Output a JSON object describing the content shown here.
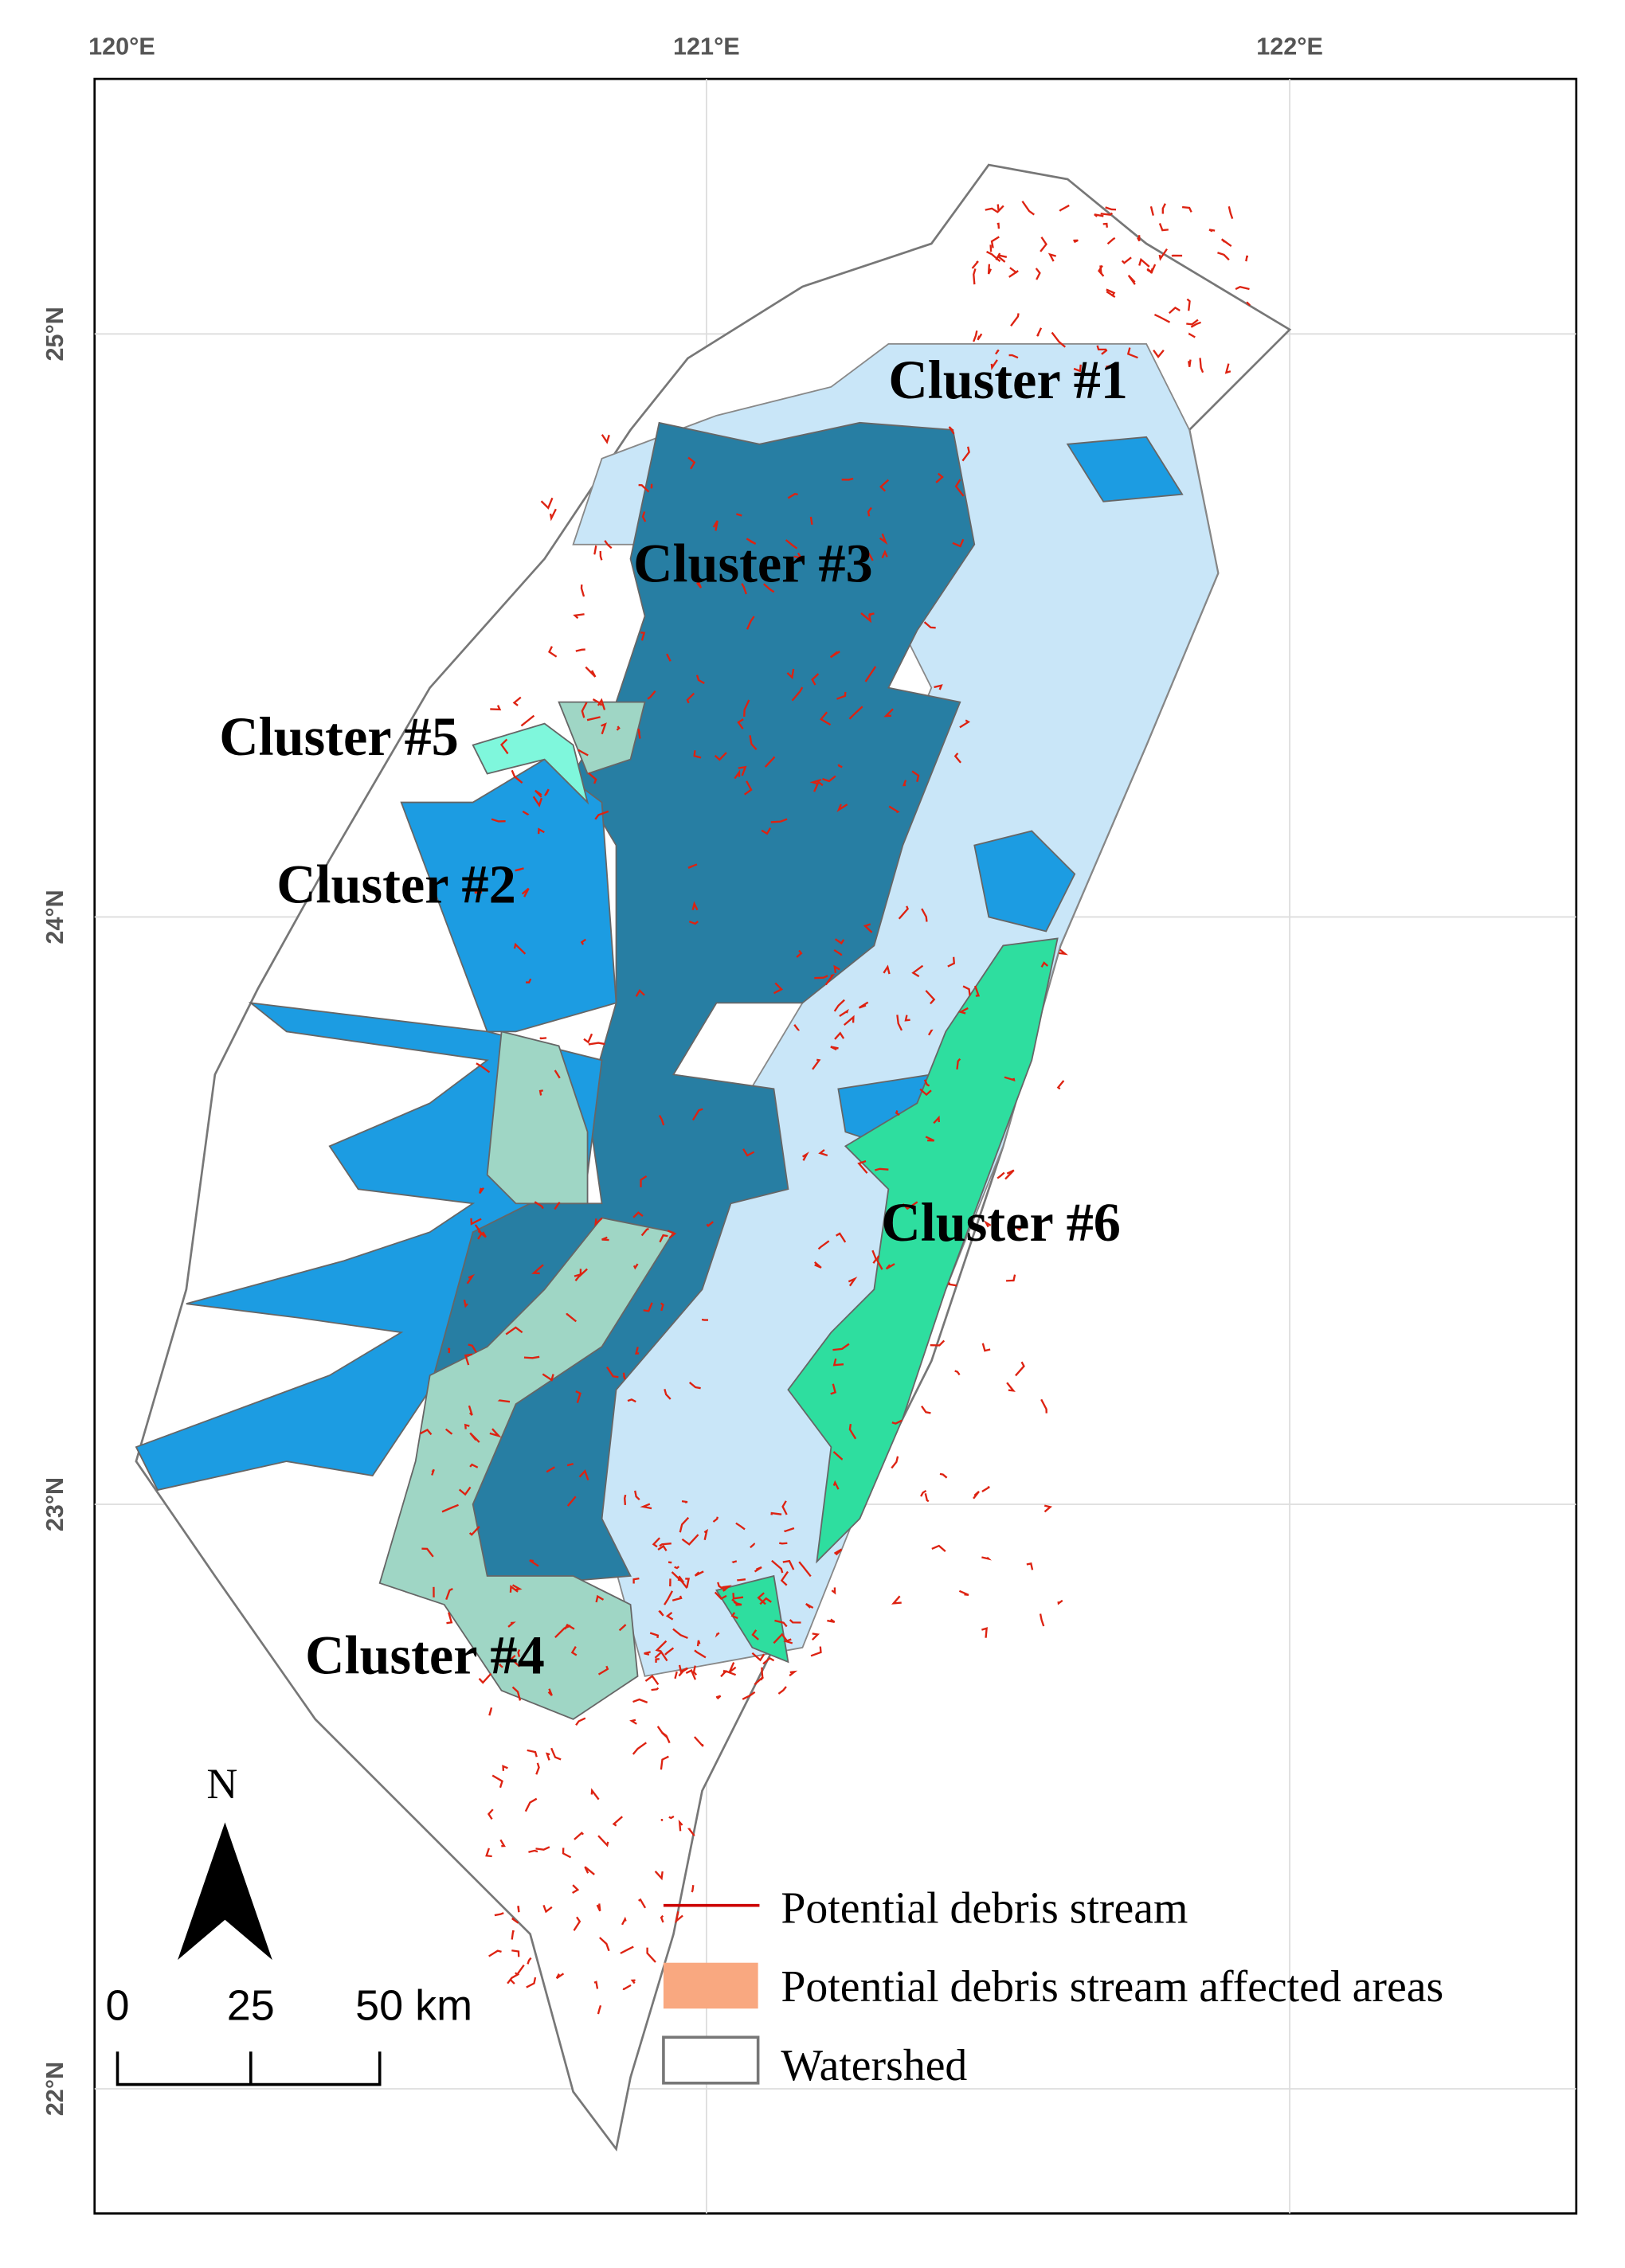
{
  "map": {
    "lon_labels": [
      "120°E",
      "121°E",
      "122°E"
    ],
    "lat_labels": [
      "25°N",
      "24°N",
      "23°N",
      "22°N"
    ],
    "clusters": [
      "Cluster #1",
      "Cluster #2",
      "Cluster #3",
      "Cluster #4",
      "Cluster #5",
      "Cluster #6"
    ],
    "north": "N",
    "scale_bar": [
      "0",
      "25",
      "50 km"
    ],
    "legend": [
      "Potential debris stream",
      "Potential debris stream affected areas",
      "Watershed"
    ]
  }
}
